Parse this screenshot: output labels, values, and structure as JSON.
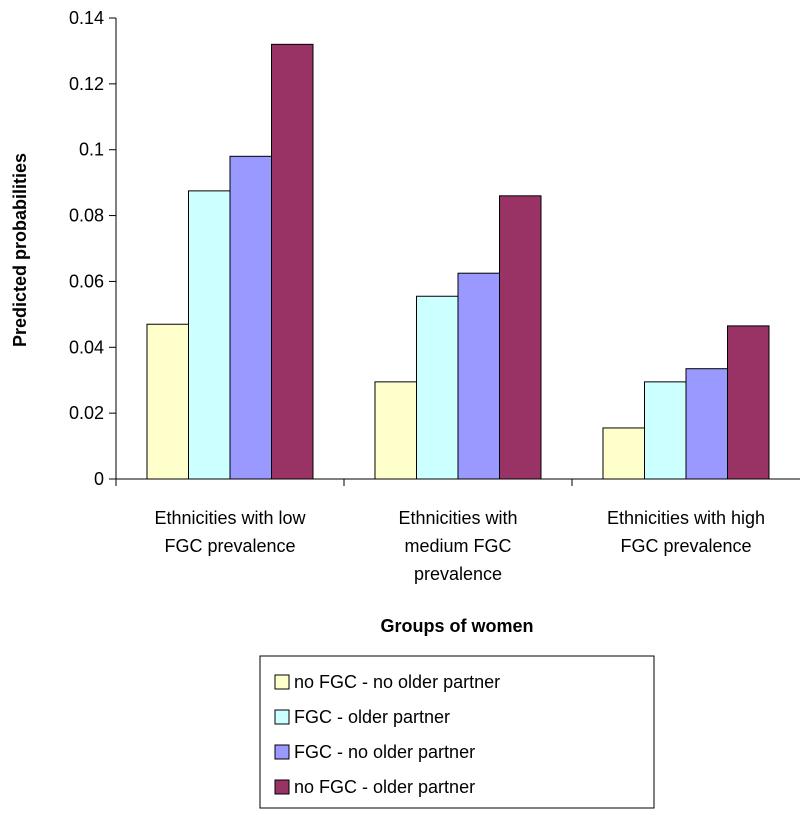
{
  "chart_data": {
    "type": "bar",
    "title": "",
    "xlabel": "Groups of women",
    "ylabel": "Predicted probabilities",
    "ylim": [
      0,
      0.14
    ],
    "yticks": [
      "0",
      "0.02",
      "0.04",
      "0.06",
      "0.08",
      "0.1",
      "0.12",
      "0.14"
    ],
    "grid": false,
    "legend_position": "bottom",
    "categories": [
      [
        "Ethnicities with low",
        "FGC prevalence"
      ],
      [
        "Ethnicities with",
        "medium FGC",
        "prevalence"
      ],
      [
        "Ethnicities with high",
        "FGC prevalence"
      ]
    ],
    "series": [
      {
        "name": "no FGC - no older partner",
        "color": "#FFFFCC",
        "values": [
          0.047,
          0.0295,
          0.0155
        ]
      },
      {
        "name": "FGC - older partner",
        "color": "#CCFFFF",
        "values": [
          0.0875,
          0.0555,
          0.0295
        ]
      },
      {
        "name": "FGC - no older partner",
        "color": "#9999FF",
        "values": [
          0.098,
          0.0625,
          0.0335
        ]
      },
      {
        "name": "no FGC - older partner",
        "color": "#993366",
        "values": [
          0.132,
          0.086,
          0.0465
        ]
      }
    ]
  }
}
